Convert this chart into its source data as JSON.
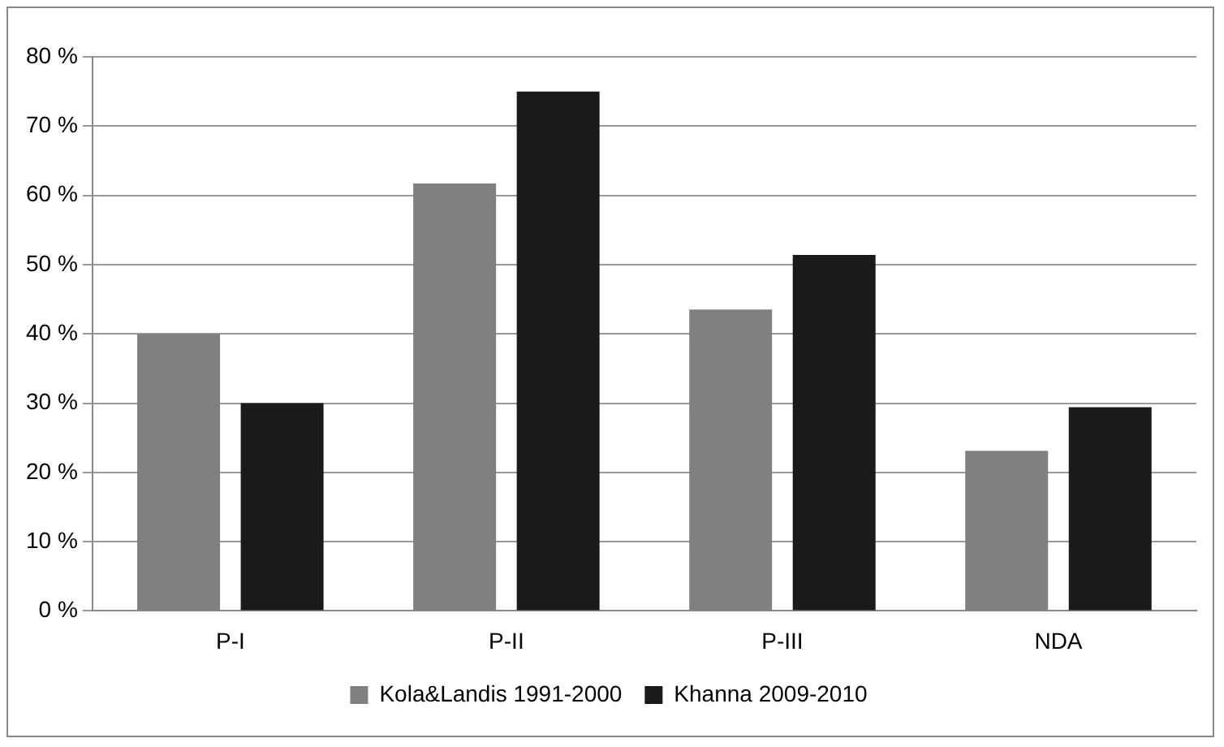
{
  "chart_data": {
    "type": "bar",
    "categories": [
      "P-I",
      "P-II",
      "P-III",
      "NDA"
    ],
    "series": [
      {
        "name": "Kola&Landis 1991-2000",
        "color": "#808080",
        "values": [
          40,
          61.7,
          43.5,
          23.1
        ]
      },
      {
        "name": "Khanna 2009-2010",
        "color": "#1a1a1a",
        "values": [
          30,
          75,
          51.4,
          29.4
        ]
      }
    ],
    "ylim": [
      0,
      80
    ],
    "yticks": [
      {
        "value": 0,
        "label": "0 %"
      },
      {
        "value": 10,
        "label": "10 %"
      },
      {
        "value": 20,
        "label": "20 %"
      },
      {
        "value": 30,
        "label": "30 %"
      },
      {
        "value": 40,
        "label": "40 %"
      },
      {
        "value": 50,
        "label": "50 %"
      },
      {
        "value": 60,
        "label": "60 %"
      },
      {
        "value": 70,
        "label": "70 %"
      },
      {
        "value": 80,
        "label": "80 %"
      }
    ],
    "grid": "y",
    "legend": "bottom"
  }
}
